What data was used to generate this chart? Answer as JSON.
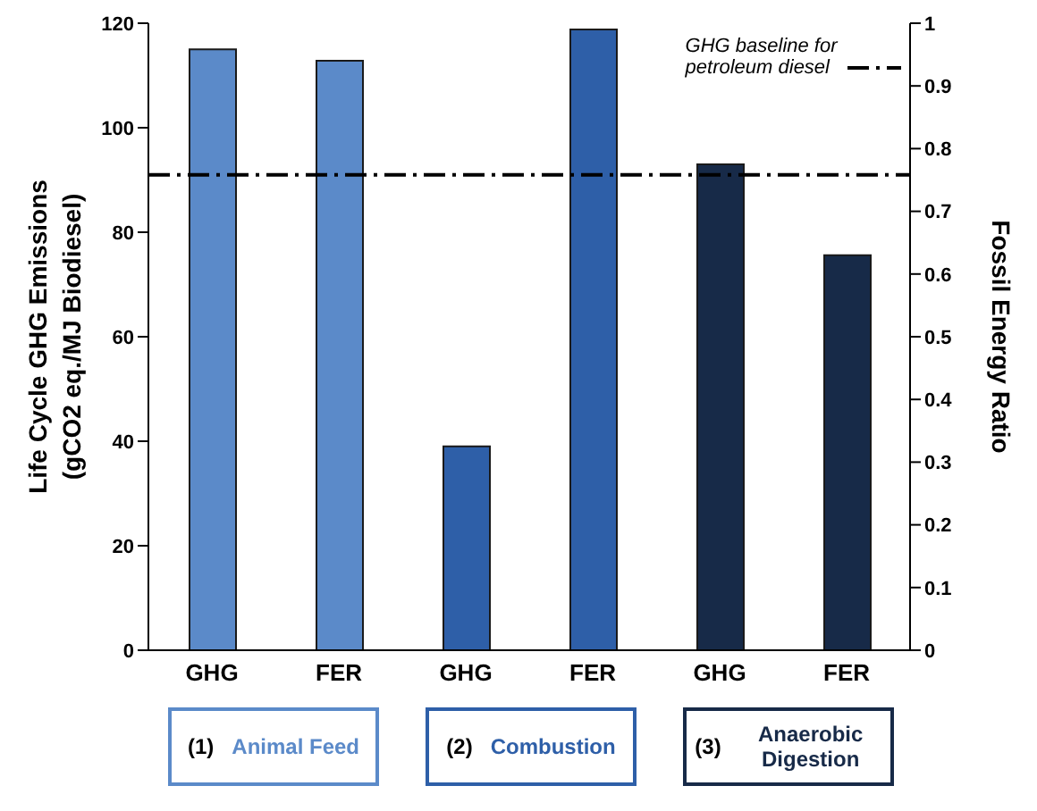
{
  "chart_data": {
    "type": "bar",
    "categories": [
      "GHG",
      "FER",
      "GHG",
      "FER",
      "GHG",
      "FER"
    ],
    "series": [
      {
        "axis": "y",
        "colors": [
          "#5b8ac9",
          "#5b8ac9",
          "#2e5fa8",
          "#2e5fa8",
          "#172a48",
          "#172a48"
        ],
        "values": [
          115,
          null,
          39,
          null,
          93,
          null
        ]
      },
      {
        "axis": "y2",
        "colors": [
          "#5b8ac9",
          "#5b8ac9",
          "#2e5fa8",
          "#2e5fa8",
          "#172a48",
          "#172a48"
        ],
        "values": [
          null,
          0.94,
          null,
          0.99,
          null,
          0.63
        ]
      }
    ],
    "ylabel": "Life Cycle GHG Emissions\n(gCO2 eq./MJ Biodiesel)",
    "y2label": "Fossil Energy Ratio",
    "ylim": [
      0,
      120
    ],
    "yticks": [
      0,
      20,
      40,
      60,
      80,
      100,
      120
    ],
    "y2lim": [
      0,
      1
    ],
    "y2ticks": [
      0,
      0.1,
      0.2,
      0.3,
      0.4,
      0.5,
      0.6,
      0.7,
      0.8,
      0.9,
      1
    ],
    "ref_lines": [
      {
        "axis": "y",
        "value": 91,
        "label": "GHG baseline for\npetroleum diesel",
        "color": "#000000",
        "line_style": "dashdot"
      }
    ],
    "legend": "top right",
    "annotations": [
      "(1) Animal Feed",
      "(2) Combustion",
      "(3) Anaerobic Digestion"
    ]
  }
}
